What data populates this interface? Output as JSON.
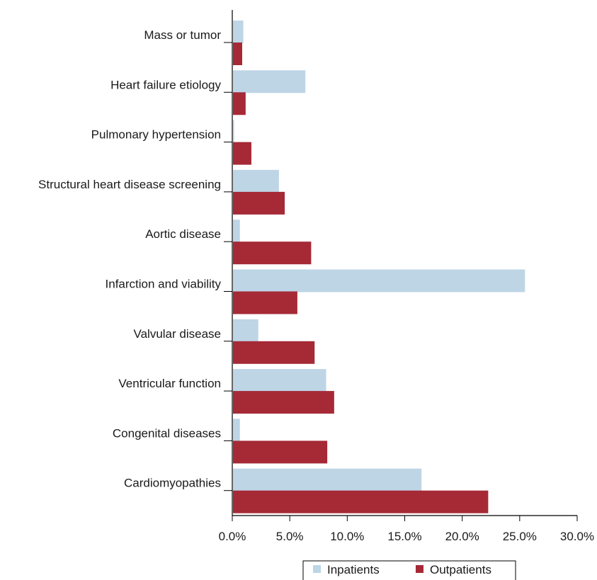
{
  "chart_data": {
    "type": "bar",
    "orientation": "horizontal",
    "categories": [
      "Mass or tumor",
      "Heart failure etiology",
      "Pulmonary hypertension",
      "Structural heart disease screening",
      "Aortic disease",
      "Infarction and viability",
      "Valvular disease",
      "Ventricular function",
      "Congenital diseases",
      "Cardiomyopathies"
    ],
    "series": [
      {
        "name": "Inpatients",
        "color": "#bed5e6",
        "values": [
          0.9,
          6.3,
          0.1,
          4.0,
          0.6,
          25.4,
          2.2,
          8.1,
          0.6,
          16.4
        ]
      },
      {
        "name": "Outpatients",
        "color": "#a52a36",
        "values": [
          0.8,
          1.1,
          1.6,
          4.5,
          6.8,
          5.6,
          7.1,
          8.8,
          8.2,
          22.2
        ]
      }
    ],
    "xlim": [
      0,
      30
    ],
    "xticks": [
      "0.0%",
      "5.0%",
      "10.0%",
      "15.0%",
      "20.0%",
      "25.0%",
      "30.0%"
    ],
    "title": "",
    "xlabel": "",
    "ylabel": "",
    "grid": false,
    "legend_position": "bottom"
  }
}
